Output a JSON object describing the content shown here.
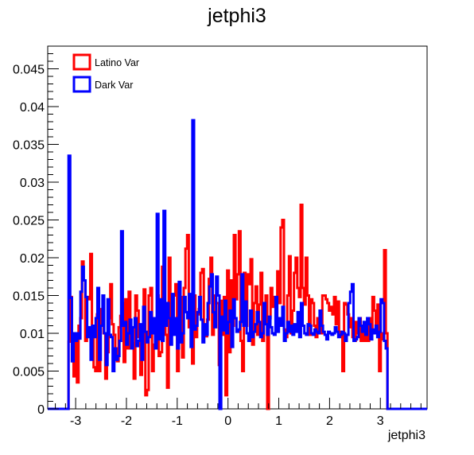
{
  "chart_data": {
    "type": "histogram",
    "title": "jetphi3",
    "xlabel": "jetphi3",
    "ylabel": "",
    "xlim": [
      -3.55,
      3.92
    ],
    "ylim": [
      0,
      0.048
    ],
    "xticks": [
      -3,
      -2,
      -1,
      0,
      1,
      2,
      3
    ],
    "xtick_labels": [
      "-3",
      "-2",
      "-1",
      "0",
      "1",
      "2",
      "3"
    ],
    "yticks": [
      0,
      0.005,
      0.01,
      0.015,
      0.02,
      0.025,
      0.03,
      0.035,
      0.04,
      0.045
    ],
    "ytick_labels": [
      "0",
      "0.005",
      "0.01",
      "0.015",
      "0.02",
      "0.025",
      "0.03",
      "0.035",
      "0.04",
      "0.045"
    ],
    "bin_edges_range": [
      -3.14,
      3.14
    ],
    "legend": {
      "position": "top-left"
    },
    "series": [
      {
        "name": "Latino Var",
        "color": "#ff0000",
        "values": [
          0.0089,
          0.0148,
          0.0063,
          0.0043,
          0.0091,
          0.0035,
          0.011,
          0.012,
          0.0195,
          0.017,
          0.009,
          0.0148,
          0.0145,
          0.0205,
          0.0102,
          0.0055,
          0.005,
          0.0125,
          0.005,
          0.0132,
          0.0115,
          0.01,
          0.004,
          0.0075,
          0.012,
          0.0165,
          0.0112,
          0.0098,
          0.008,
          0.0063,
          0.0108,
          0.0123,
          0.014,
          0.0062,
          0.0145,
          0.008,
          0.0155,
          0.008,
          0.0087,
          0.004,
          0.015,
          0.013,
          0.0095,
          0.0045,
          0.0105,
          0.0158,
          0.0018,
          0.0025,
          0.015,
          0.016,
          0.005,
          0.0085,
          0.0115,
          0.015,
          0.007,
          0.0075,
          0.0188,
          0.014,
          0.0098,
          0.0028,
          0.02,
          0.0102,
          0.0105,
          0.015,
          0.0165,
          0.005,
          0.0095,
          0.0148,
          0.0068,
          0.016,
          0.0212,
          0.023,
          0.0108,
          0.0122,
          0.006,
          0.015,
          0.0095,
          0.0125,
          0.0132,
          0.018,
          0.0185,
          0.01,
          0.0096,
          0.0118,
          0.0172,
          0.02,
          0.0098,
          0.015,
          0.014,
          0.014,
          0.0058,
          0.0143,
          0.0098,
          0.0148,
          0.0018,
          0.0183,
          0.0075,
          0.017,
          0.011,
          0.023,
          0.0145,
          0.0178,
          0.0235,
          0.009,
          0.005,
          0.018,
          0.011,
          0.0178,
          0.0165,
          0.0198,
          0.0085,
          0.014,
          0.0162,
          0.0098,
          0.0138,
          0.018,
          0.009,
          0.014,
          0.015,
          0.0,
          0.012,
          0.016,
          0.0135,
          0.0148,
          0.0115,
          0.0182,
          0.014,
          0.024,
          0.025,
          0.0105,
          0.0095,
          0.015,
          0.0202,
          0.01,
          0.013,
          0.018,
          0.02,
          0.016,
          0.0148,
          0.027,
          0.016,
          0.0138,
          0.02,
          0.015,
          0.0098,
          0.0145,
          0.014,
          0.011,
          0.0095,
          0.012,
          0.0112,
          0.01,
          0.015,
          0.015,
          0.0145,
          0.014,
          0.013,
          0.0135,
          0.0125,
          0.0148,
          0.0112,
          0.0142,
          0.0102,
          0.0098,
          0.005,
          0.014,
          0.0138,
          0.0125,
          0.0108,
          0.012,
          0.0095,
          0.009,
          0.0115,
          0.01,
          0.012,
          0.009,
          0.011,
          0.009,
          0.01,
          0.009,
          0.012,
          0.01,
          0.0148,
          0.013,
          0.011,
          0.0138,
          0.005,
          0.01,
          0.0092,
          0.021,
          0.01
        ]
      },
      {
        "name": "Dark Var",
        "color": "#0000ff",
        "values": [
          0.0335,
          0.0147,
          0.0063,
          0.01,
          0.009,
          0.01,
          0.0093,
          0.0155,
          0.0188,
          0.017,
          0.0148,
          0.0095,
          0.0108,
          0.0065,
          0.011,
          0.0095,
          0.012,
          0.016,
          0.0065,
          0.011,
          0.015,
          0.01,
          0.0058,
          0.0145,
          0.0098,
          0.0095,
          0.005,
          0.008,
          0.0065,
          0.007,
          0.009,
          0.0235,
          0.011,
          0.0115,
          0.0085,
          0.01,
          0.0118,
          0.008,
          0.0108,
          0.012,
          0.0083,
          0.009,
          0.0112,
          0.0065,
          0.0135,
          0.0102,
          0.0088,
          0.0095,
          0.0128,
          0.01,
          0.012,
          0.008,
          0.0258,
          0.0092,
          0.0145,
          0.009,
          0.0262,
          0.011,
          0.014,
          0.012,
          0.0085,
          0.0152,
          0.0098,
          0.012,
          0.008,
          0.0168,
          0.0088,
          0.01,
          0.0148,
          0.0128,
          0.012,
          0.0152,
          0.0082,
          0.0382,
          0.0105,
          0.011,
          0.0128,
          0.0148,
          0.0118,
          0.0088,
          0.0112,
          0.0098,
          0.014,
          0.0162,
          0.0178,
          0.0128,
          0.0108,
          0.0175,
          0.015,
          0.0,
          0.0122,
          0.0104,
          0.0143,
          0.01,
          0.0115,
          0.013,
          0.0082,
          0.0145,
          0.012,
          0.0102,
          0.0105,
          0.0115,
          0.0178,
          0.011,
          0.0142,
          0.01,
          0.009,
          0.013,
          0.0095,
          0.0102,
          0.0112,
          0.0128,
          0.0115,
          0.0095,
          0.01,
          0.014,
          0.0112,
          0.0098,
          0.0122,
          0.0108,
          0.01,
          0.0098,
          0.0148,
          0.0102,
          0.012,
          0.011,
          0.0135,
          0.009,
          0.01,
          0.0115,
          0.0102,
          0.011,
          0.0098,
          0.0112,
          0.0102,
          0.0128,
          0.0095,
          0.014,
          0.011,
          0.01,
          0.0098,
          0.0112,
          0.011,
          0.01,
          0.0098,
          0.0105,
          0.0102,
          0.01,
          0.013,
          0.011,
          0.0102,
          0.0098,
          0.0092,
          0.0102,
          0.01,
          0.0098,
          0.01,
          0.0108,
          0.0102,
          0.0095,
          0.0098,
          0.0102,
          0.01,
          0.009,
          0.0098,
          0.014,
          0.0155,
          0.0165,
          0.009,
          0.0092,
          0.0095,
          0.012,
          0.011,
          0.0102,
          0.0115,
          0.0098,
          0.012,
          0.0112,
          0.0092,
          0.0105,
          0.01,
          0.011,
          0.0095,
          0.0102,
          0.0145,
          0.014,
          0.009,
          0.008
        ]
      }
    ]
  }
}
